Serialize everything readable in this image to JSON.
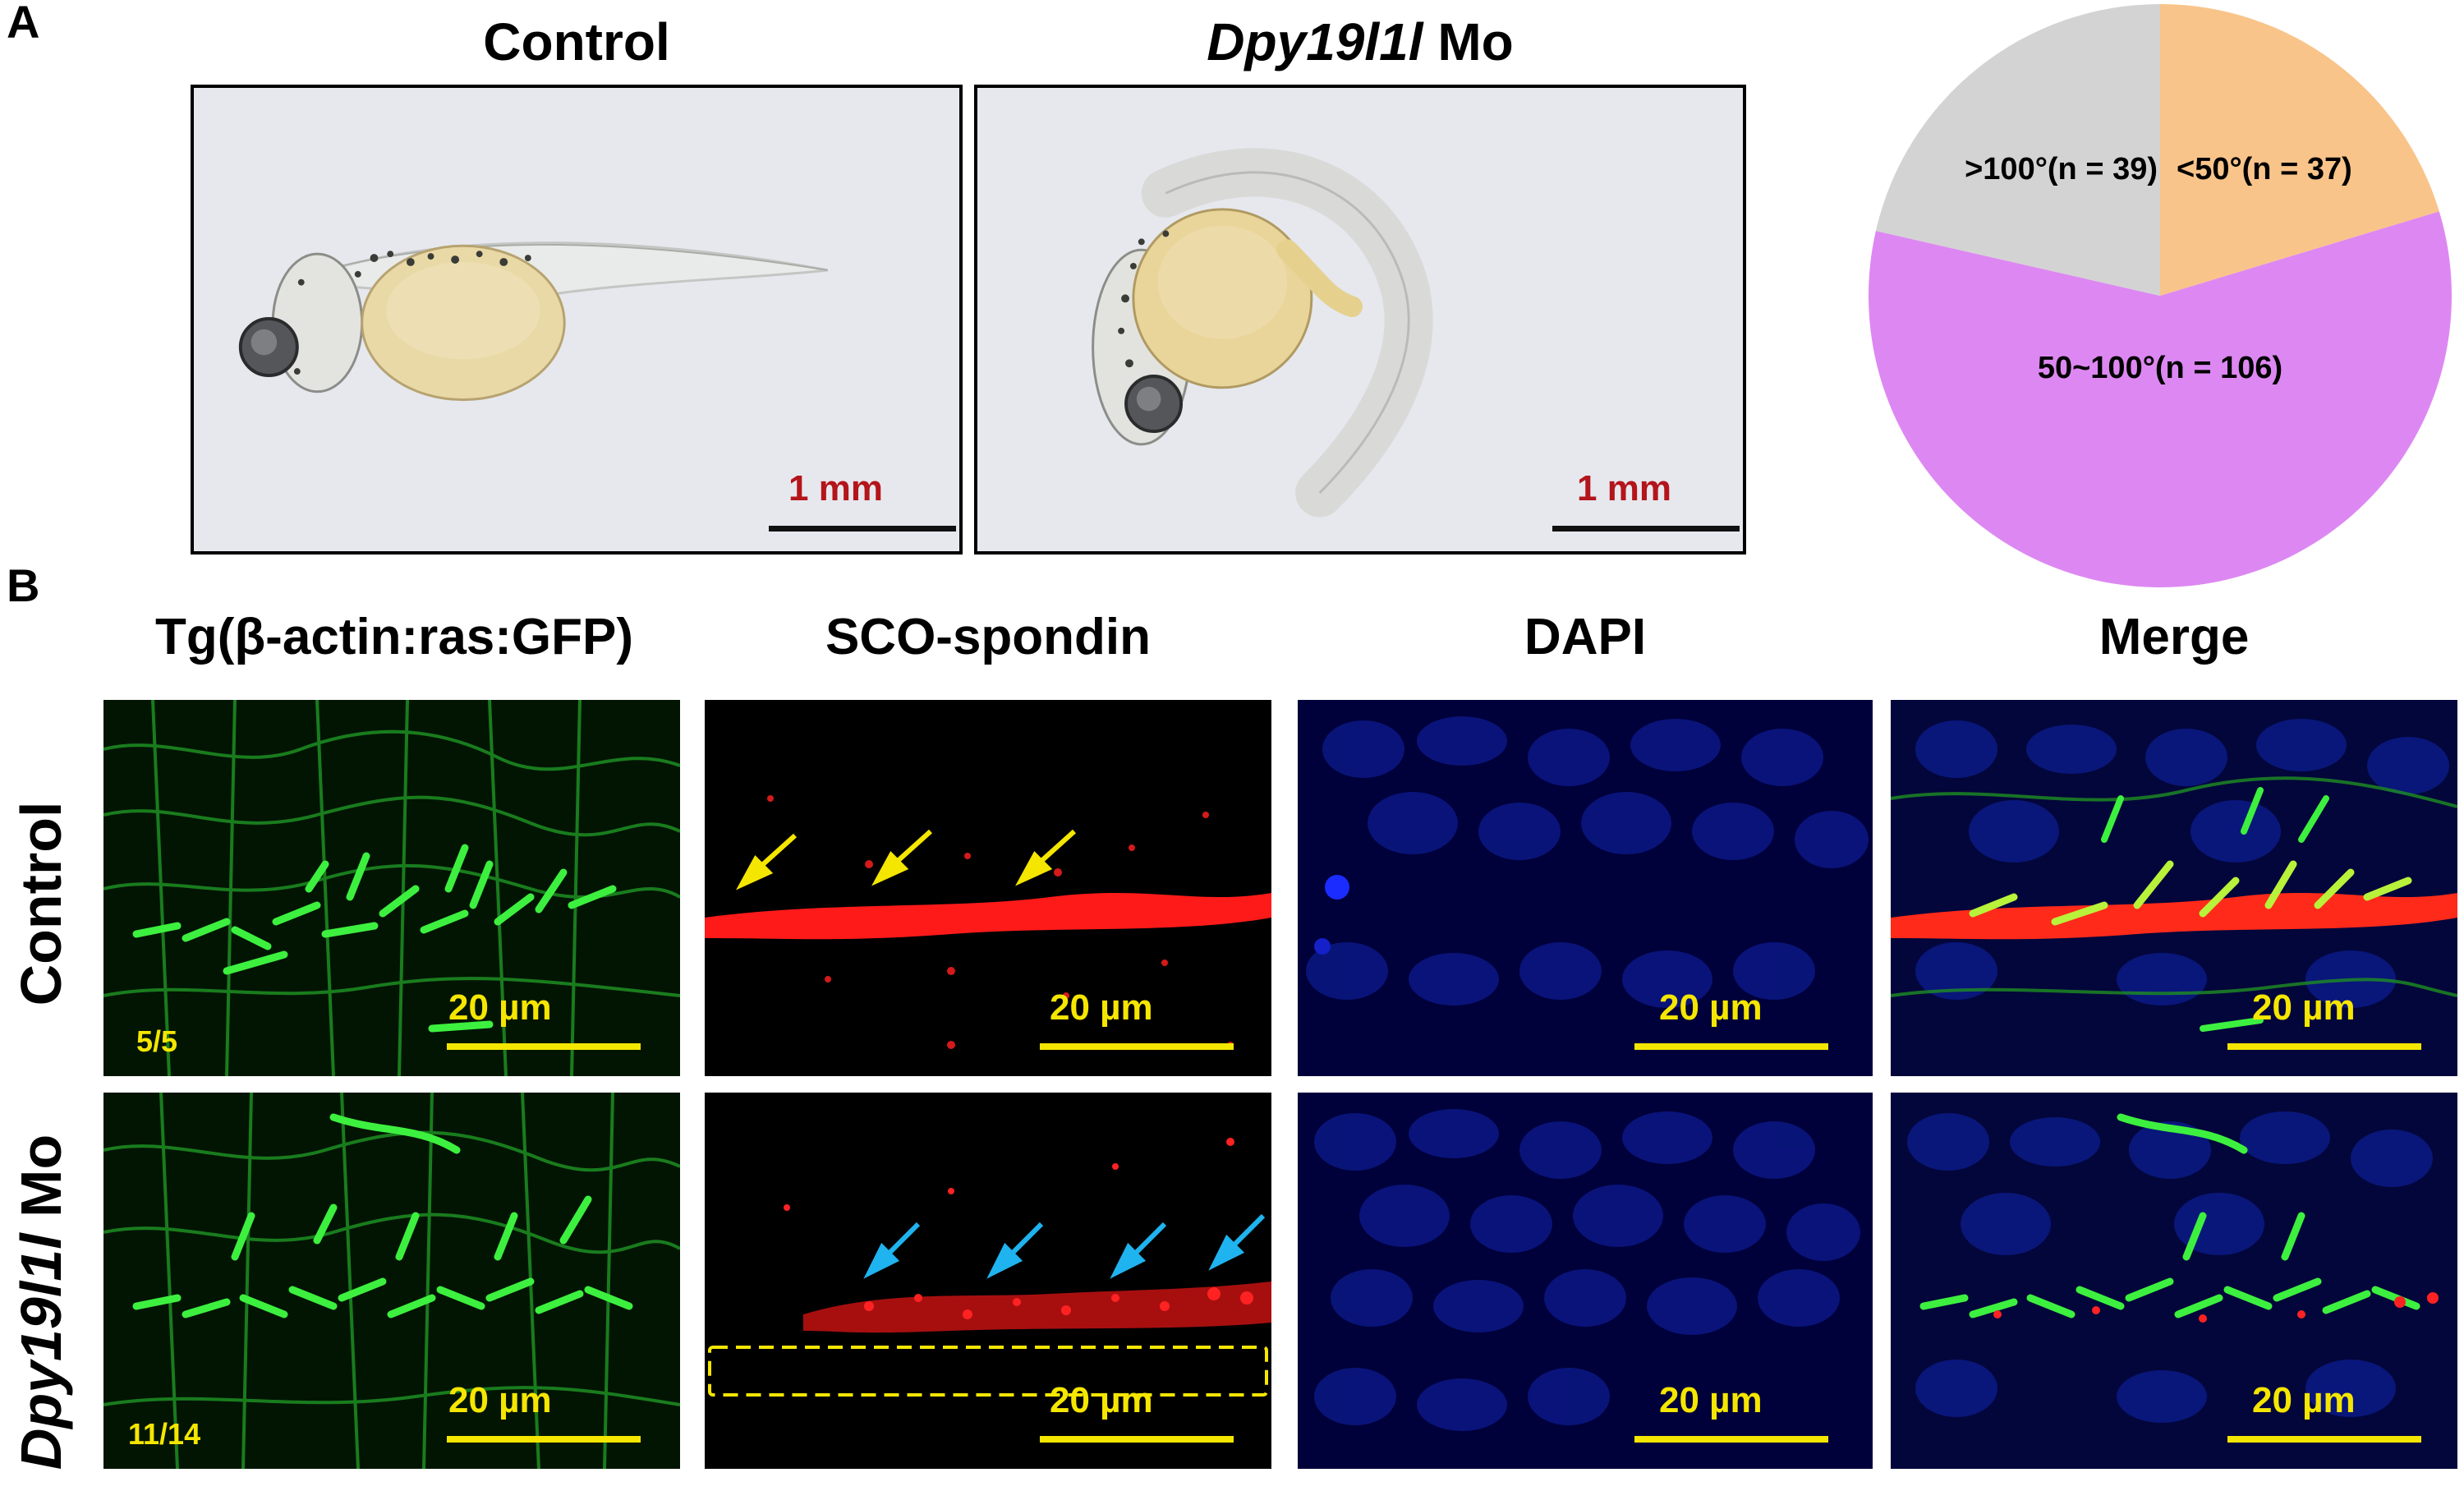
{
  "panel_a": {
    "letter": "A",
    "control_title": "Control",
    "mo_title_gene": "Dpy19l1l",
    "mo_title_suffix": " Mo",
    "scale_label": "1 mm"
  },
  "pie": {
    "colors": {
      "gray": "#d3d3d3",
      "orange": "#f9c48a",
      "violet": "#dd88f2"
    },
    "label_gray": ">100°(n = 39)",
    "label_orange": "<50°(n = 37)",
    "label_violet": "50~100°(n = 106)"
  },
  "chart_data": {
    "type": "pie",
    "categories": [
      "<50°",
      "50~100°",
      ">100°"
    ],
    "values": [
      37,
      106,
      39
    ]
  },
  "panel_b": {
    "letter": "B",
    "col_gfp": "Tg(β-actin:ras:GFP)",
    "col_sco": "SCO-spondin",
    "col_dapi": "DAPI",
    "col_merge": "Merge",
    "row_control": "Control",
    "row_mo_gene": "Dpy19l1l",
    "row_mo_suffix": " Mo",
    "scale_label": "20 µm",
    "ratio_control": "5/5",
    "ratio_mo": "11/14"
  }
}
